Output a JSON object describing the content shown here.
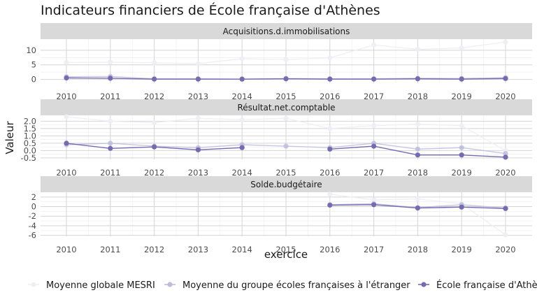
{
  "chart_data": {
    "type": "line",
    "title": "Indicateurs financiers de École française d'Athènes",
    "xlabel": "exercice",
    "ylabel": "Valeur",
    "x": [
      2010,
      2011,
      2012,
      2013,
      2014,
      2015,
      2016,
      2017,
      2018,
      2019,
      2020
    ],
    "series_names": [
      "Moyenne globale MESRI",
      "Moyenne du groupe écoles françaises à l'étranger",
      "École française d'Athènes"
    ],
    "series_colors": [
      "#efedf5",
      "#bcbddc",
      "#756bb1"
    ],
    "series_opacity": [
      0.9,
      0.85,
      1.0
    ],
    "legend_position": "bottom",
    "grid": true,
    "facets": [
      {
        "name": "Acquisitions.d.immobilisations",
        "ylim": [
          -1.3,
          13.8
        ],
        "yticks": [
          0,
          5,
          10
        ],
        "ytick_labels": [
          "0",
          "5",
          "10"
        ],
        "series": [
          {
            "name": "Moyenne globale MESRI",
            "values": [
              5.8,
              5.9,
              5.7,
              5.4,
              7.1,
              6.8,
              7.4,
              11.8,
              10.3,
              10.8,
              12.8
            ]
          },
          {
            "name": "Moyenne du groupe écoles françaises à l'étranger",
            "values": [
              0.9,
              1.0,
              0.2,
              0.2,
              0.1,
              0.3,
              0.2,
              0.2,
              0.4,
              0.3,
              0.6
            ]
          },
          {
            "name": "École française d'Athènes",
            "values": [
              0.5,
              0.4,
              0.1,
              0.1,
              0.1,
              0.2,
              0.1,
              0.1,
              0.2,
              0.1,
              0.3
            ]
          }
        ]
      },
      {
        "name": "Résultat.net.comptable",
        "ylim": [
          -0.6,
          2.4
        ],
        "yticks": [
          -0.5,
          0,
          0.5,
          1.0,
          1.5,
          2.0
        ],
        "ytick_labels": [
          "-0.5",
          "0.0",
          "0.5",
          "1.0",
          "1.5",
          "2.0"
        ],
        "series": [
          {
            "name": "Moyenne globale MESRI",
            "values": [
              2.3,
              2.0,
              1.9,
              2.2,
              2.1,
              2.2,
              1.5,
              1.7,
              1.8,
              1.7,
              0.0
            ]
          },
          {
            "name": "Moyenne du groupe écoles françaises à l'étranger",
            "values": [
              0.4,
              0.5,
              0.3,
              0.2,
              0.4,
              0.3,
              0.2,
              0.5,
              0.1,
              0.2,
              -0.2
            ]
          },
          {
            "name": "École française d'Athènes",
            "values": [
              0.5,
              0.15,
              0.25,
              0.05,
              0.2,
              null,
              0.1,
              0.3,
              -0.3,
              -0.3,
              -0.45
            ]
          }
        ]
      },
      {
        "name": "Solde.budgétaire",
        "ylim": [
          -6.2,
          3.0
        ],
        "yticks": [
          -6,
          -4,
          -2,
          0,
          2
        ],
        "ytick_labels": [
          "-6",
          "-4",
          "-2",
          "0",
          "2"
        ],
        "series": [
          {
            "name": "Moyenne globale MESRI",
            "values": [
              null,
              null,
              null,
              null,
              null,
              null,
              2.6,
              1.4,
              1.6,
              0.6,
              -5.9
            ]
          },
          {
            "name": "Moyenne du groupe écoles françaises à l'étranger",
            "values": [
              null,
              null,
              null,
              null,
              null,
              null,
              0.4,
              0.6,
              -0.2,
              0.4,
              -0.3
            ]
          },
          {
            "name": "École française d'Athènes",
            "values": [
              null,
              null,
              null,
              null,
              null,
              null,
              0.3,
              0.4,
              -0.3,
              -0.1,
              -0.4
            ]
          }
        ]
      }
    ]
  }
}
